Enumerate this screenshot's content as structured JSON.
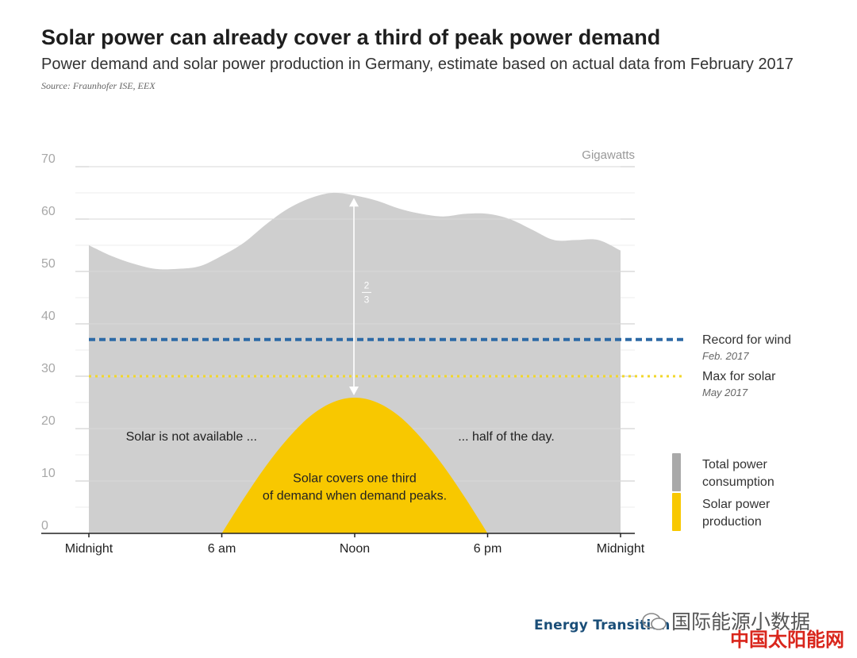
{
  "header": {
    "title": "Solar power can already cover a third of peak power demand",
    "subtitle": "Power demand and solar power production in Germany, estimate based on actual data from February 2017",
    "source": "Source:  Fraunhofer ISE, EEX"
  },
  "chart_data": {
    "type": "area",
    "unit_label": "Gigawatts",
    "ylim": [
      0,
      70
    ],
    "y_ticks": [
      0,
      10,
      20,
      30,
      40,
      50,
      60,
      70
    ],
    "x_ticks": [
      {
        "hour": 0,
        "label": "Midnight"
      },
      {
        "hour": 6,
        "label": "6 am"
      },
      {
        "hour": 12,
        "label": "Noon"
      },
      {
        "hour": 18,
        "label": "6 pm"
      },
      {
        "hour": 24,
        "label": "Midnight"
      }
    ],
    "series": [
      {
        "name": "Total power consumption",
        "color": "#cfcfcf",
        "x": [
          0,
          1,
          2,
          3,
          4,
          5,
          6,
          7,
          8,
          9,
          10,
          11,
          12,
          13,
          14,
          15,
          16,
          17,
          18,
          19,
          20,
          21,
          22,
          23,
          24
        ],
        "values": [
          55,
          53,
          51.5,
          50.5,
          50.5,
          51,
          53,
          55.5,
          59,
          62,
          64,
          65,
          64.5,
          63.5,
          62,
          61,
          60.5,
          61,
          61,
          60,
          58,
          56,
          56,
          56,
          54
        ]
      },
      {
        "name": "Solar power production",
        "color": "#f8c800",
        "x": [
          6,
          7,
          8,
          9,
          10,
          11,
          12,
          13,
          14,
          15,
          16,
          17,
          18
        ],
        "values": [
          0,
          6.7,
          12.9,
          18.2,
          22.4,
          25.0,
          25.9,
          25.0,
          22.4,
          18.2,
          12.9,
          6.7,
          0
        ]
      }
    ],
    "reference_lines": [
      {
        "label": "Record for wind",
        "sublabel": "Feb. 2017",
        "value": 37,
        "color": "#2d6aa6",
        "style": "dashed"
      },
      {
        "label": "Max for solar",
        "sublabel": "May 2017",
        "value": 30,
        "color": "#f2d72a",
        "style": "dotted"
      }
    ],
    "annotations": [
      {
        "text": "Solar is not available ...",
        "x": 6.5,
        "y": 18.5
      },
      {
        "text": "... half of the day.",
        "x": 19.2,
        "y": 18.5
      },
      {
        "text": "Solar covers one third",
        "x": 12,
        "y": 10.5
      },
      {
        "text": "of demand when demand peaks.",
        "x": 12,
        "y": 7.2
      }
    ],
    "fraction": {
      "numerator": "2",
      "denominator": "3"
    },
    "legend": [
      {
        "label_line1": "Total power",
        "label_line2": "consumption",
        "color": "#a9a9a9"
      },
      {
        "label_line1": "Solar power",
        "label_line2": "production",
        "color": "#f8c800"
      }
    ],
    "legend_position": "right"
  },
  "footer": {
    "brand": "Energy Transition",
    "watermark": "国际能源小数据",
    "watermark2": "中国太阳能网"
  }
}
